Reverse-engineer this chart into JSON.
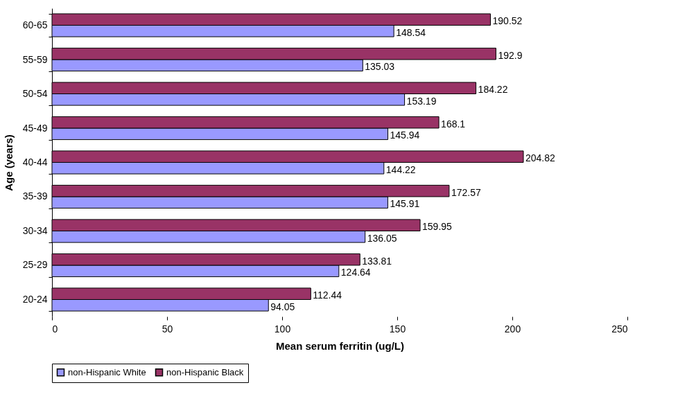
{
  "chart_data": {
    "type": "bar",
    "orientation": "horizontal",
    "xlabel": "Mean serum ferritin (ug/L)",
    "ylabel": "Age (years)",
    "categories": [
      "60-65",
      "55-59",
      "50-54",
      "45-49",
      "40-44",
      "35-39",
      "30-34",
      "25-29",
      "20-24"
    ],
    "series": [
      {
        "name": "non-Hispanic White",
        "color": "#9999ff",
        "values": [
          148.54,
          135.03,
          153.19,
          145.94,
          144.22,
          145.91,
          136.05,
          124.64,
          94.05
        ]
      },
      {
        "name": "non-Hispanic Black",
        "color": "#993366",
        "values": [
          190.52,
          192.9,
          184.22,
          168.1,
          204.82,
          172.57,
          159.95,
          133.81,
          112.44
        ]
      }
    ],
    "xlim": [
      0,
      250
    ],
    "xticks": [
      0,
      50,
      100,
      150,
      200,
      250
    ],
    "data_labels": true,
    "legend": "bottom",
    "grid": false
  }
}
